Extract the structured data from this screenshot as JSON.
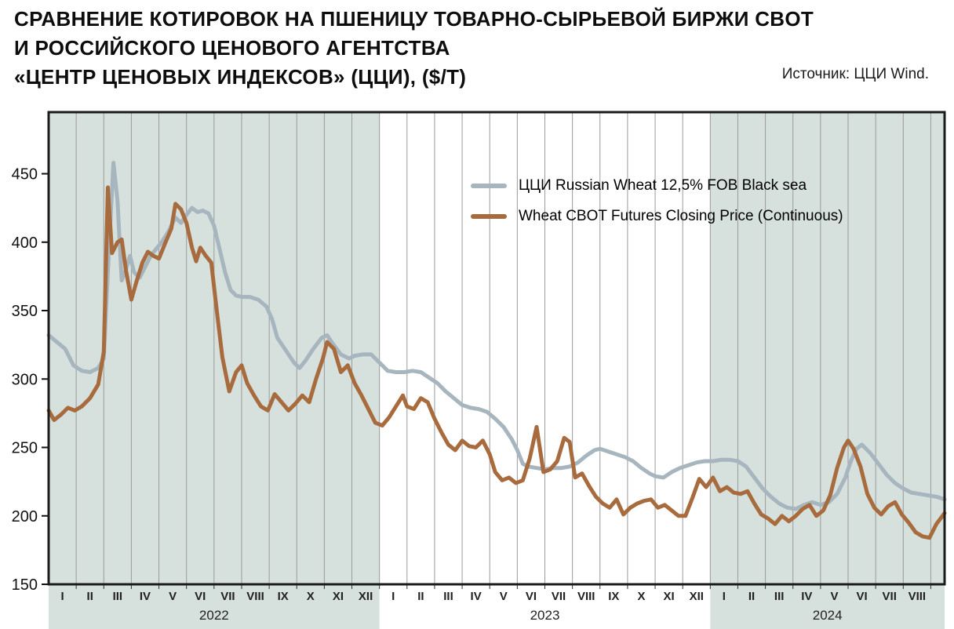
{
  "header": {
    "title_lines": [
      "СРАВНЕНИЕ КОТИРОВОК НА ПШЕНИЦУ ТОВАРНО-СЫРЬЕВОЙ БИРЖИ CBOT",
      "И РОССИЙСКОГО ЦЕНОВОГО АГЕНТСТВА",
      "«ЦЕНТР ЦЕНОВЫХ ИНДЕКСОВ» (ЦЦИ), ($/Т)"
    ],
    "source": "Источник: ЦЦИ Wind."
  },
  "chart_data": {
    "type": "line",
    "title": "Сравнение котировок на пшеницу CBOT и ЦЦИ, $/т",
    "ylabel": "$/T",
    "ylim": [
      150,
      495
    ],
    "yticks": [
      150,
      200,
      250,
      300,
      350,
      400,
      450
    ],
    "xlim": [
      0,
      32.5
    ],
    "x_unit": "months since 2022-01",
    "grid": "vertical-monthly",
    "legend_position": "inside-top-right",
    "month_labels": [
      "I",
      "II",
      "III",
      "IV",
      "V",
      "VI",
      "VII",
      "VIII",
      "IX",
      "X",
      "XI",
      "XII"
    ],
    "years": [
      {
        "label": "2022",
        "start": 0,
        "end": 12,
        "months": 12,
        "shaded": true
      },
      {
        "label": "2023",
        "start": 12,
        "end": 24,
        "months": 12,
        "shaded": false
      },
      {
        "label": "2024",
        "start": 24,
        "end": 32.5,
        "months": 8,
        "shaded": true
      }
    ],
    "colors": {
      "band": "#d6e1dd",
      "grid": "#9a9a9a",
      "frame": "#1a1a1a"
    },
    "series": [
      {
        "id": "cci",
        "name": "ЦЦИ Russian Wheat 12,5% FOB Black sea",
        "color": "#a7b5bf",
        "points": [
          [
            0,
            332
          ],
          [
            0.3,
            327
          ],
          [
            0.6,
            322
          ],
          [
            0.9,
            310
          ],
          [
            1.2,
            306
          ],
          [
            1.5,
            305
          ],
          [
            1.8,
            308
          ],
          [
            2.0,
            315
          ],
          [
            2.2,
            400
          ],
          [
            2.35,
            458
          ],
          [
            2.5,
            430
          ],
          [
            2.65,
            372
          ],
          [
            2.8,
            380
          ],
          [
            2.95,
            390
          ],
          [
            3.1,
            378
          ],
          [
            3.3,
            374
          ],
          [
            3.5,
            382
          ],
          [
            3.7,
            390
          ],
          [
            3.9,
            395
          ],
          [
            4.1,
            400
          ],
          [
            4.35,
            408
          ],
          [
            4.6,
            418
          ],
          [
            4.8,
            414
          ],
          [
            5.0,
            420
          ],
          [
            5.2,
            425
          ],
          [
            5.4,
            422
          ],
          [
            5.6,
            423
          ],
          [
            5.8,
            421
          ],
          [
            6.0,
            412
          ],
          [
            6.2,
            395
          ],
          [
            6.4,
            378
          ],
          [
            6.6,
            365
          ],
          [
            6.8,
            361
          ],
          [
            7.0,
            360
          ],
          [
            7.3,
            360
          ],
          [
            7.6,
            358
          ],
          [
            7.9,
            353
          ],
          [
            8.1,
            344
          ],
          [
            8.3,
            330
          ],
          [
            8.6,
            321
          ],
          [
            8.9,
            312
          ],
          [
            9.1,
            308
          ],
          [
            9.3,
            313
          ],
          [
            9.6,
            322
          ],
          [
            9.9,
            330
          ],
          [
            10.1,
            332
          ],
          [
            10.3,
            326
          ],
          [
            10.6,
            318
          ],
          [
            10.9,
            315
          ],
          [
            11.1,
            317
          ],
          [
            11.4,
            318
          ],
          [
            11.7,
            318
          ],
          [
            12.0,
            312
          ],
          [
            12.3,
            306
          ],
          [
            12.6,
            305
          ],
          [
            12.9,
            305
          ],
          [
            13.2,
            306
          ],
          [
            13.5,
            305
          ],
          [
            13.8,
            301
          ],
          [
            14.1,
            297
          ],
          [
            14.4,
            291
          ],
          [
            14.7,
            286
          ],
          [
            15.0,
            281
          ],
          [
            15.3,
            279
          ],
          [
            15.6,
            278
          ],
          [
            15.9,
            276
          ],
          [
            16.2,
            271
          ],
          [
            16.5,
            265
          ],
          [
            16.8,
            256
          ],
          [
            17.0,
            248
          ],
          [
            17.2,
            238
          ],
          [
            17.4,
            236
          ],
          [
            17.7,
            235
          ],
          [
            18.0,
            234
          ],
          [
            18.3,
            235
          ],
          [
            18.6,
            235
          ],
          [
            18.9,
            236
          ],
          [
            19.2,
            239
          ],
          [
            19.5,
            244
          ],
          [
            19.8,
            248
          ],
          [
            20.0,
            249
          ],
          [
            20.3,
            247
          ],
          [
            20.6,
            245
          ],
          [
            20.9,
            243
          ],
          [
            21.2,
            240
          ],
          [
            21.5,
            235
          ],
          [
            21.8,
            231
          ],
          [
            22.0,
            229
          ],
          [
            22.3,
            228
          ],
          [
            22.6,
            232
          ],
          [
            22.9,
            235
          ],
          [
            23.2,
            237
          ],
          [
            23.5,
            239
          ],
          [
            23.8,
            240
          ],
          [
            24.1,
            240
          ],
          [
            24.4,
            241
          ],
          [
            24.7,
            241
          ],
          [
            25.0,
            240
          ],
          [
            25.3,
            236
          ],
          [
            25.6,
            228
          ],
          [
            25.9,
            220
          ],
          [
            26.2,
            214
          ],
          [
            26.5,
            209
          ],
          [
            26.8,
            206
          ],
          [
            27.1,
            205
          ],
          [
            27.4,
            208
          ],
          [
            27.7,
            210
          ],
          [
            28.0,
            208
          ],
          [
            28.3,
            210
          ],
          [
            28.6,
            216
          ],
          [
            28.9,
            228
          ],
          [
            29.1,
            240
          ],
          [
            29.3,
            249
          ],
          [
            29.5,
            252
          ],
          [
            29.8,
            246
          ],
          [
            30.1,
            238
          ],
          [
            30.4,
            230
          ],
          [
            30.7,
            224
          ],
          [
            31.0,
            220
          ],
          [
            31.3,
            217
          ],
          [
            31.6,
            216
          ],
          [
            31.9,
            215
          ],
          [
            32.2,
            214
          ],
          [
            32.5,
            212
          ]
        ]
      },
      {
        "id": "cbot",
        "name": "Wheat CBOT Futures Closing Price (Continuous)",
        "color": "#a86b3e",
        "points": [
          [
            0,
            277
          ],
          [
            0.2,
            270
          ],
          [
            0.45,
            274
          ],
          [
            0.7,
            279
          ],
          [
            0.95,
            277
          ],
          [
            1.2,
            280
          ],
          [
            1.5,
            286
          ],
          [
            1.8,
            296
          ],
          [
            2.0,
            320
          ],
          [
            2.15,
            440
          ],
          [
            2.3,
            392
          ],
          [
            2.5,
            400
          ],
          [
            2.65,
            402
          ],
          [
            2.8,
            380
          ],
          [
            3.0,
            358
          ],
          [
            3.2,
            372
          ],
          [
            3.4,
            385
          ],
          [
            3.6,
            393
          ],
          [
            3.8,
            390
          ],
          [
            4.0,
            388
          ],
          [
            4.2,
            398
          ],
          [
            4.45,
            410
          ],
          [
            4.6,
            428
          ],
          [
            4.8,
            424
          ],
          [
            5.0,
            414
          ],
          [
            5.2,
            396
          ],
          [
            5.35,
            386
          ],
          [
            5.5,
            396
          ],
          [
            5.7,
            390
          ],
          [
            5.9,
            385
          ],
          [
            6.1,
            350
          ],
          [
            6.3,
            316
          ],
          [
            6.55,
            291
          ],
          [
            6.8,
            305
          ],
          [
            7.0,
            310
          ],
          [
            7.2,
            297
          ],
          [
            7.45,
            288
          ],
          [
            7.7,
            280
          ],
          [
            7.95,
            277
          ],
          [
            8.2,
            289
          ],
          [
            8.45,
            283
          ],
          [
            8.7,
            277
          ],
          [
            8.95,
            282
          ],
          [
            9.2,
            288
          ],
          [
            9.45,
            283
          ],
          [
            9.7,
            300
          ],
          [
            9.95,
            315
          ],
          [
            10.1,
            327
          ],
          [
            10.35,
            322
          ],
          [
            10.6,
            305
          ],
          [
            10.85,
            310
          ],
          [
            11.1,
            297
          ],
          [
            11.35,
            288
          ],
          [
            11.6,
            278
          ],
          [
            11.85,
            268
          ],
          [
            12.1,
            266
          ],
          [
            12.35,
            272
          ],
          [
            12.6,
            280
          ],
          [
            12.85,
            288
          ],
          [
            13.0,
            280
          ],
          [
            13.25,
            278
          ],
          [
            13.5,
            286
          ],
          [
            13.75,
            283
          ],
          [
            14.0,
            271
          ],
          [
            14.25,
            261
          ],
          [
            14.5,
            252
          ],
          [
            14.75,
            248
          ],
          [
            15.0,
            255
          ],
          [
            15.25,
            251
          ],
          [
            15.5,
            250
          ],
          [
            15.75,
            255
          ],
          [
            16.0,
            245
          ],
          [
            16.2,
            232
          ],
          [
            16.45,
            226
          ],
          [
            16.7,
            228
          ],
          [
            16.95,
            224
          ],
          [
            17.2,
            226
          ],
          [
            17.45,
            242
          ],
          [
            17.7,
            265
          ],
          [
            17.95,
            232
          ],
          [
            18.2,
            234
          ],
          [
            18.45,
            240
          ],
          [
            18.7,
            257
          ],
          [
            18.9,
            254
          ],
          [
            19.1,
            228
          ],
          [
            19.35,
            231
          ],
          [
            19.6,
            222
          ],
          [
            19.85,
            214
          ],
          [
            20.1,
            209
          ],
          [
            20.35,
            206
          ],
          [
            20.6,
            212
          ],
          [
            20.85,
            201
          ],
          [
            21.1,
            206
          ],
          [
            21.35,
            209
          ],
          [
            21.6,
            211
          ],
          [
            21.85,
            212
          ],
          [
            22.1,
            206
          ],
          [
            22.35,
            208
          ],
          [
            22.6,
            204
          ],
          [
            22.85,
            200
          ],
          [
            23.1,
            200
          ],
          [
            23.35,
            213
          ],
          [
            23.6,
            227
          ],
          [
            23.85,
            221
          ],
          [
            24.1,
            228
          ],
          [
            24.35,
            218
          ],
          [
            24.6,
            221
          ],
          [
            24.85,
            217
          ],
          [
            25.1,
            216
          ],
          [
            25.35,
            218
          ],
          [
            25.6,
            209
          ],
          [
            25.85,
            201
          ],
          [
            26.1,
            198
          ],
          [
            26.35,
            194
          ],
          [
            26.6,
            200
          ],
          [
            26.85,
            196
          ],
          [
            27.1,
            200
          ],
          [
            27.35,
            205
          ],
          [
            27.6,
            208
          ],
          [
            27.85,
            200
          ],
          [
            28.1,
            204
          ],
          [
            28.35,
            215
          ],
          [
            28.6,
            235
          ],
          [
            28.85,
            250
          ],
          [
            29.0,
            255
          ],
          [
            29.2,
            249
          ],
          [
            29.45,
            236
          ],
          [
            29.7,
            216
          ],
          [
            29.95,
            206
          ],
          [
            30.2,
            201
          ],
          [
            30.45,
            207
          ],
          [
            30.7,
            210
          ],
          [
            30.95,
            201
          ],
          [
            31.2,
            195
          ],
          [
            31.45,
            188
          ],
          [
            31.7,
            185
          ],
          [
            31.95,
            184
          ],
          [
            32.2,
            194
          ],
          [
            32.5,
            202
          ]
        ]
      }
    ]
  }
}
